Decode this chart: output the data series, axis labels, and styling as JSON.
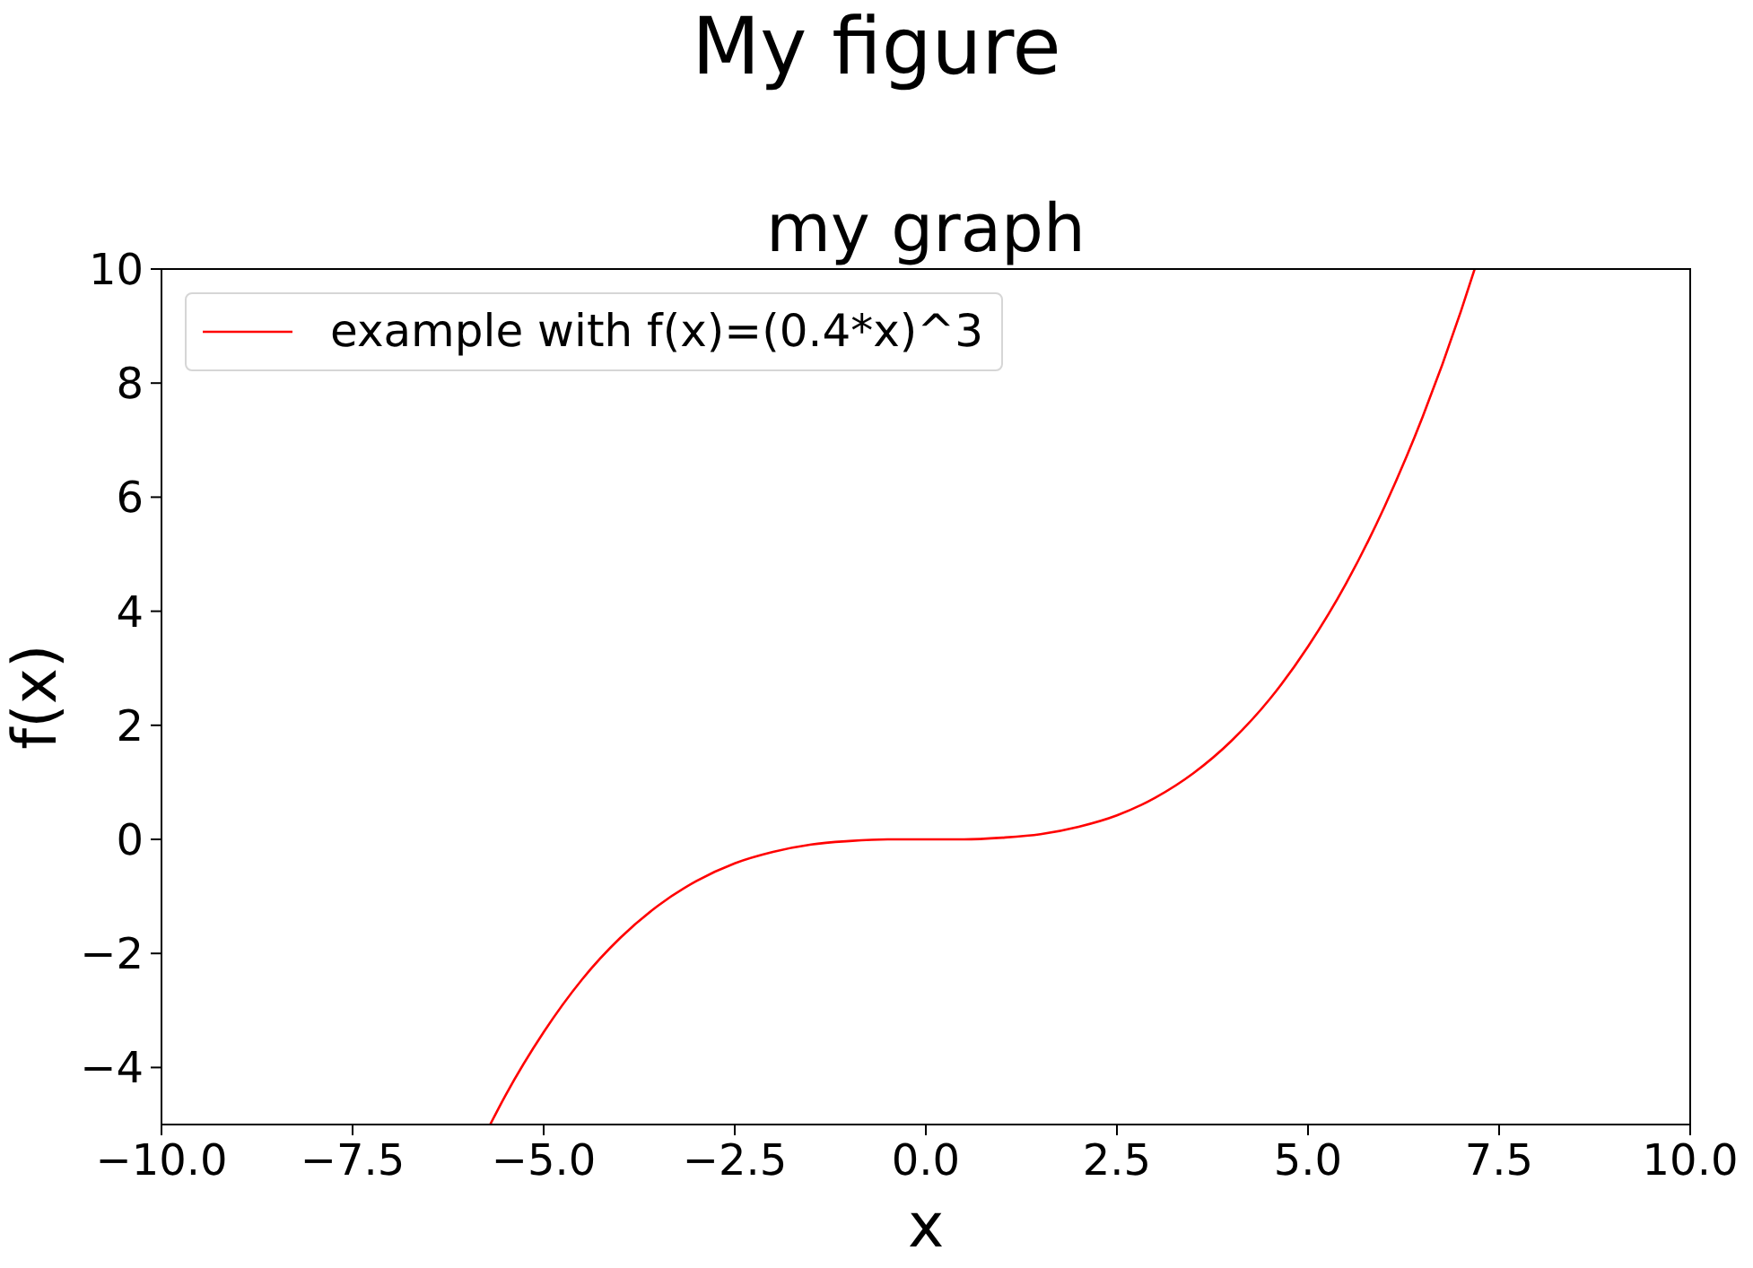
{
  "chart_data": {
    "type": "line",
    "title": "My figure",
    "subtitle": "my graph",
    "xlabel": "x",
    "ylabel": "f(x)",
    "x": [
      -5.7,
      -5.5,
      -5,
      -4.5,
      -4,
      -3.5,
      -3,
      -2.5,
      -2,
      -1.5,
      -1,
      -0.5,
      0,
      0.5,
      1,
      1.5,
      2,
      2.5,
      3,
      3.5,
      4,
      4.5,
      5,
      5.5,
      6,
      6.5,
      7,
      7.18
    ],
    "series": [
      {
        "name": "example with f(x)=(0.4*x)^3",
        "color": "#ff0000",
        "values": [
          -5.0,
          -4.49,
          -3.38,
          -2.46,
          -1.73,
          -1.16,
          -0.73,
          -0.42,
          -0.22,
          -0.09,
          -0.03,
          0,
          0,
          0,
          0.03,
          0.09,
          0.22,
          0.42,
          0.73,
          1.16,
          1.73,
          2.46,
          3.38,
          4.49,
          5.83,
          7.41,
          9.26,
          10.0
        ]
      }
    ],
    "xlim": [
      -10,
      10
    ],
    "ylim": [
      -5,
      10
    ],
    "xticks": [
      {
        "value": -10,
        "label": "−10.0"
      },
      {
        "value": -7.5,
        "label": "−7.5"
      },
      {
        "value": -5,
        "label": "−5.0"
      },
      {
        "value": -2.5,
        "label": "−2.5"
      },
      {
        "value": 0,
        "label": "0.0"
      },
      {
        "value": 2.5,
        "label": "2.5"
      },
      {
        "value": 5,
        "label": "5.0"
      },
      {
        "value": 7.5,
        "label": "7.5"
      },
      {
        "value": 10,
        "label": "10.0"
      }
    ],
    "yticks": [
      {
        "value": -4,
        "label": "−4"
      },
      {
        "value": -2,
        "label": "−2"
      },
      0,
      2,
      4,
      6,
      8,
      10
    ],
    "legend": "top left",
    "marker": "none",
    "line_style": "solid"
  }
}
